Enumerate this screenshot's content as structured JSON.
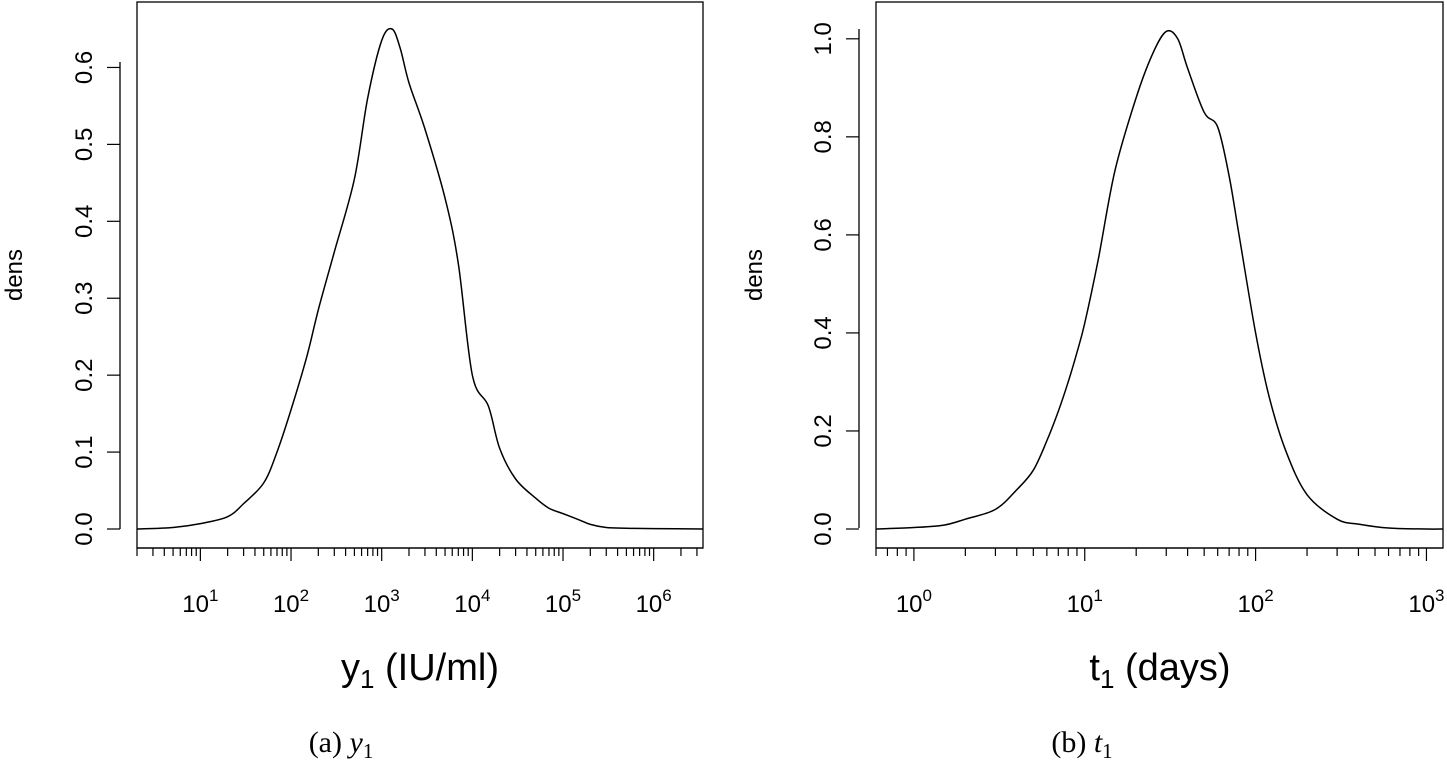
{
  "chart_data": [
    {
      "type": "line",
      "xscale": "log10",
      "xlabel": {
        "main": "y",
        "sub": "1",
        "unit": " (IU/ml)"
      },
      "ylabel": "dens",
      "caption": {
        "prefix": "(a) ",
        "var": "y",
        "sub": "1"
      },
      "xlim": [
        2,
        3500000
      ],
      "ylim": [
        0,
        0.65
      ],
      "x_ticks_major": [
        10,
        100,
        1000,
        10000,
        100000,
        1000000
      ],
      "x_tick_labels": [
        {
          "base": "10",
          "exp": "1"
        },
        {
          "base": "10",
          "exp": "2"
        },
        {
          "base": "10",
          "exp": "3"
        },
        {
          "base": "10",
          "exp": "4"
        },
        {
          "base": "10",
          "exp": "5"
        },
        {
          "base": "10",
          "exp": "6"
        }
      ],
      "y_ticks": [
        0.0,
        0.1,
        0.2,
        0.3,
        0.4,
        0.5,
        0.6
      ],
      "y_tick_labels": [
        "0.0",
        "0.1",
        "0.2",
        "0.3",
        "0.4",
        "0.5",
        "0.6"
      ],
      "series": [
        {
          "x": [
            2,
            5,
            10,
            20,
            30,
            50,
            70,
            100,
            150,
            200,
            300,
            500,
            700,
            1000,
            1300,
            1600,
            2000,
            3000,
            5000,
            7000,
            10000,
            15000,
            20000,
            30000,
            50000,
            70000,
            100000,
            150000,
            200000,
            300000,
            500000,
            1000000,
            3500000
          ],
          "y": [
            0.0,
            0.002,
            0.007,
            0.016,
            0.033,
            0.06,
            0.1,
            0.155,
            0.225,
            0.285,
            0.36,
            0.455,
            0.56,
            0.635,
            0.65,
            0.625,
            0.58,
            0.52,
            0.43,
            0.345,
            0.2,
            0.16,
            0.105,
            0.065,
            0.04,
            0.027,
            0.02,
            0.012,
            0.006,
            0.002,
            0.001,
            0.0005,
            0.0
          ]
        }
      ]
    },
    {
      "type": "line",
      "xscale": "log10",
      "xlabel": {
        "main": "t",
        "sub": "1",
        "unit": " (days)"
      },
      "ylabel": "dens",
      "caption": {
        "prefix": "(b) ",
        "var": "t",
        "sub": "1"
      },
      "xlim": [
        0.6,
        1250
      ],
      "ylim": [
        0,
        1.02
      ],
      "x_ticks_major": [
        1,
        10,
        100,
        1000
      ],
      "x_tick_labels": [
        {
          "base": "10",
          "exp": "0"
        },
        {
          "base": "10",
          "exp": "1"
        },
        {
          "base": "10",
          "exp": "2"
        },
        {
          "base": "10",
          "exp": "3"
        }
      ],
      "y_ticks": [
        0.0,
        0.2,
        0.4,
        0.6,
        0.8,
        1.0
      ],
      "y_tick_labels": [
        "0.0",
        "0.2",
        "0.4",
        "0.6",
        "0.8",
        "1.0"
      ],
      "series": [
        {
          "x": [
            0.6,
            1,
            1.5,
            2,
            3,
            4,
            5,
            6,
            7,
            8,
            9,
            10,
            12,
            15,
            20,
            25,
            30,
            35,
            40,
            50,
            60,
            70,
            80,
            100,
            120,
            150,
            200,
            300,
            400,
            600,
            1000,
            1250
          ],
          "y": [
            0.0,
            0.003,
            0.008,
            0.02,
            0.04,
            0.08,
            0.12,
            0.18,
            0.24,
            0.3,
            0.36,
            0.42,
            0.55,
            0.73,
            0.88,
            0.97,
            1.015,
            1.0,
            0.94,
            0.85,
            0.82,
            0.72,
            0.6,
            0.4,
            0.27,
            0.16,
            0.07,
            0.02,
            0.01,
            0.002,
            0.0,
            0.0
          ]
        }
      ]
    }
  ]
}
